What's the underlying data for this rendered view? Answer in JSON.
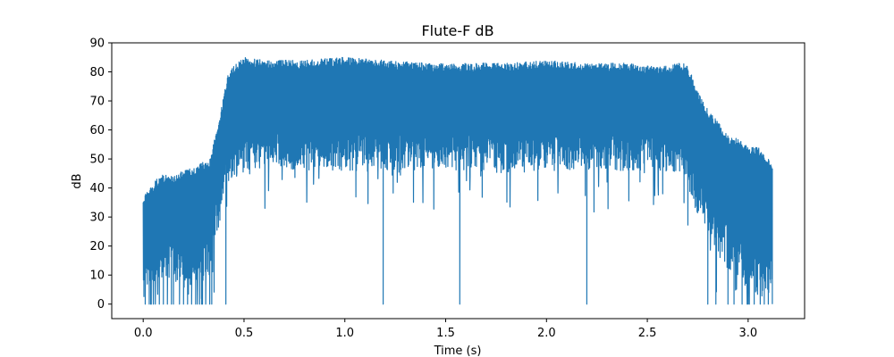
{
  "chart_data": {
    "type": "line",
    "title": "Flute-F dB",
    "xlabel": "Time (s)",
    "ylabel": "dB",
    "xlim": [
      -0.156,
      3.28
    ],
    "ylim": [
      -5,
      90
    ],
    "xticks": [
      0.0,
      0.5,
      1.0,
      1.5,
      2.0,
      2.5,
      3.0
    ],
    "xtick_labels": [
      "0.0",
      "0.5",
      "1.0",
      "1.5",
      "2.0",
      "2.5",
      "3.0"
    ],
    "yticks": [
      0,
      10,
      20,
      30,
      40,
      50,
      60,
      70,
      80,
      90
    ],
    "ytick_labels": [
      "0",
      "10",
      "20",
      "30",
      "40",
      "50",
      "60",
      "70",
      "80",
      "90"
    ],
    "grid": false,
    "series": [
      {
        "color": "#1f77b4",
        "envelope": {
          "time": [
            0.0,
            0.05,
            0.1,
            0.15,
            0.2,
            0.25,
            0.3,
            0.33,
            0.35,
            0.38,
            0.4,
            0.42,
            0.45,
            0.5,
            0.6,
            0.8,
            1.0,
            1.2,
            1.4,
            1.6,
            1.8,
            2.0,
            2.2,
            2.4,
            2.5,
            2.6,
            2.65,
            2.68,
            2.7,
            2.72,
            2.75,
            2.8,
            2.85,
            2.9,
            2.95,
            3.0,
            3.05,
            3.1,
            3.12
          ],
          "upper": [
            37,
            42,
            45,
            44,
            46,
            47,
            49,
            50,
            56,
            65,
            72,
            79,
            82,
            85,
            84,
            84,
            85,
            84,
            83,
            83,
            83,
            84,
            83,
            83,
            82,
            82,
            83,
            83,
            82,
            79,
            73,
            67,
            63,
            58,
            57,
            54,
            54,
            50,
            49
          ],
          "lower_typical": [
            0,
            5,
            10,
            8,
            5,
            6,
            8,
            10,
            18,
            28,
            38,
            42,
            44,
            45,
            47,
            46,
            46,
            45,
            46,
            46,
            45,
            46,
            46,
            46,
            45,
            45,
            44,
            42,
            40,
            36,
            30,
            24,
            18,
            12,
            8,
            5,
            3,
            2,
            2
          ]
        }
      }
    ],
    "dips_to_zero_s": [
      0.01,
      0.03,
      0.04,
      0.06,
      0.08,
      0.1,
      0.12,
      0.14,
      0.15,
      0.18,
      0.2,
      0.22,
      0.24,
      0.26,
      0.28,
      0.29,
      0.31,
      0.33,
      0.34,
      0.41,
      1.19,
      1.57,
      2.2,
      2.8,
      2.84,
      2.9,
      2.93,
      2.97,
      3.0,
      3.03,
      3.06,
      3.08,
      3.1,
      3.12
    ]
  }
}
